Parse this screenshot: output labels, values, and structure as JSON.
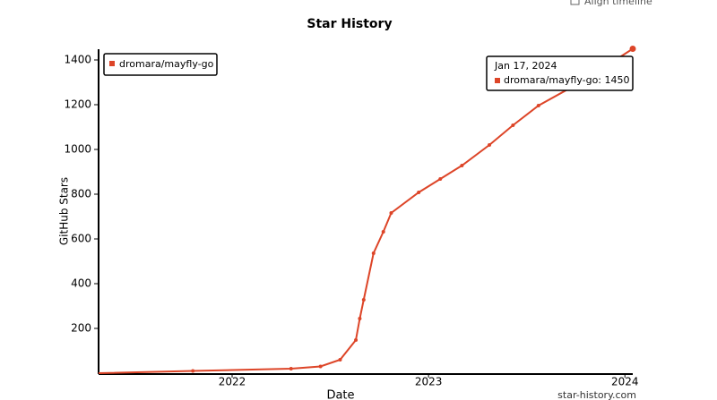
{
  "chart_data": {
    "type": "line",
    "title": "Star History",
    "x_label": "Date",
    "y_label": "GitHub Stars",
    "x": [
      2021.32,
      2021.8,
      2022.3,
      2022.45,
      2022.55,
      2022.63,
      2022.65,
      2022.67,
      2022.72,
      2022.77,
      2022.81,
      2022.95,
      2023.06,
      2023.17,
      2023.31,
      2023.43,
      2023.56,
      2023.79,
      2024.04
    ],
    "series": [
      {
        "name": "dromara/mayfly-go",
        "color": "#dd4528",
        "values": [
          0,
          10,
          20,
          30,
          60,
          148,
          244,
          328,
          536,
          632,
          716,
          808,
          868,
          928,
          1020,
          1108,
          1196,
          1308,
          1450
        ]
      }
    ],
    "xlim": [
      2021.32,
      2024.04
    ],
    "xticks": [
      2022,
      2023,
      2024
    ],
    "ylim": [
      0,
      1460
    ],
    "yticks": [
      200,
      400,
      600,
      800,
      1000,
      1200,
      1400
    ],
    "legend": "top-left",
    "tooltip": {
      "date": "Jan 17, 2024",
      "label": "dromara/mayfly-go: 1450"
    },
    "checkbox_label": "Align timeline",
    "watermark": "star-history.com"
  }
}
